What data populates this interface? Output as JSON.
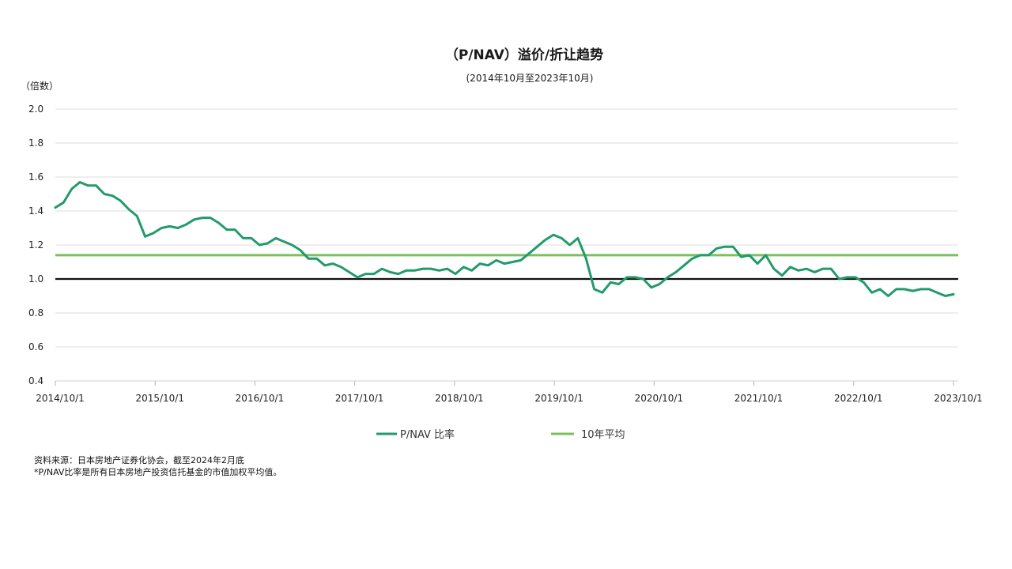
{
  "chart_data": {
    "type": "line",
    "title": "（P/NAV）溢价/折让趋势",
    "subtitle": "(2014年10月至2023年10月)",
    "ylabel": "（倍数）",
    "xlabel": "",
    "ylim": [
      0.4,
      2.0
    ],
    "yticks": [
      "2.0",
      "1.8",
      "1.6",
      "1.4",
      "1.2",
      "1.0",
      "0.8",
      "0.6",
      "0.4"
    ],
    "xticks": [
      "2014/10/1",
      "2015/10/1",
      "2016/10/1",
      "2017/10/1",
      "2018/10/1",
      "2019/10/1",
      "2020/10/1",
      "2021/10/1",
      "2022/10/1",
      "2023/10/1"
    ],
    "x_range_months": [
      0,
      108
    ],
    "grid": true,
    "legend_position": "bottom",
    "reference_line": {
      "name": "",
      "value": 1.0,
      "color": "#111111"
    },
    "series": [
      {
        "name": "P/NAV 比率",
        "color": "#239a6b",
        "values": [
          1.42,
          1.45,
          1.53,
          1.57,
          1.55,
          1.55,
          1.5,
          1.49,
          1.46,
          1.41,
          1.37,
          1.25,
          1.27,
          1.3,
          1.31,
          1.3,
          1.32,
          1.35,
          1.36,
          1.36,
          1.33,
          1.29,
          1.29,
          1.24,
          1.24,
          1.2,
          1.21,
          1.24,
          1.22,
          1.2,
          1.17,
          1.12,
          1.12,
          1.08,
          1.09,
          1.07,
          1.04,
          1.01,
          1.03,
          1.03,
          1.06,
          1.04,
          1.03,
          1.05,
          1.05,
          1.06,
          1.06,
          1.05,
          1.06,
          1.03,
          1.07,
          1.05,
          1.09,
          1.08,
          1.11,
          1.09,
          1.1,
          1.11,
          1.15,
          1.19,
          1.23,
          1.26,
          1.24,
          1.2,
          1.24,
          1.12,
          0.94,
          0.92,
          0.98,
          0.97,
          1.01,
          1.01,
          1.0,
          0.95,
          0.97,
          1.01,
          1.04,
          1.08,
          1.12,
          1.14,
          1.14,
          1.18,
          1.19,
          1.19,
          1.13,
          1.14,
          1.09,
          1.14,
          1.06,
          1.02,
          1.07,
          1.05,
          1.06,
          1.04,
          1.06,
          1.06,
          1.0,
          1.01,
          1.01,
          0.98,
          0.92,
          0.94,
          0.9,
          0.94,
          0.94,
          0.93,
          0.94,
          0.94,
          0.92,
          0.9,
          0.91
        ]
      },
      {
        "name": "10年平均",
        "color": "#7cbf5f",
        "values": [
          1.14,
          1.14
        ]
      }
    ]
  },
  "notes": {
    "source": "资料来源：日本房地产证券化协会，截至2024年2月底",
    "footnote": "*P/NAV比率是所有日本房地产投资信托基金的市值加权平均值。"
  }
}
